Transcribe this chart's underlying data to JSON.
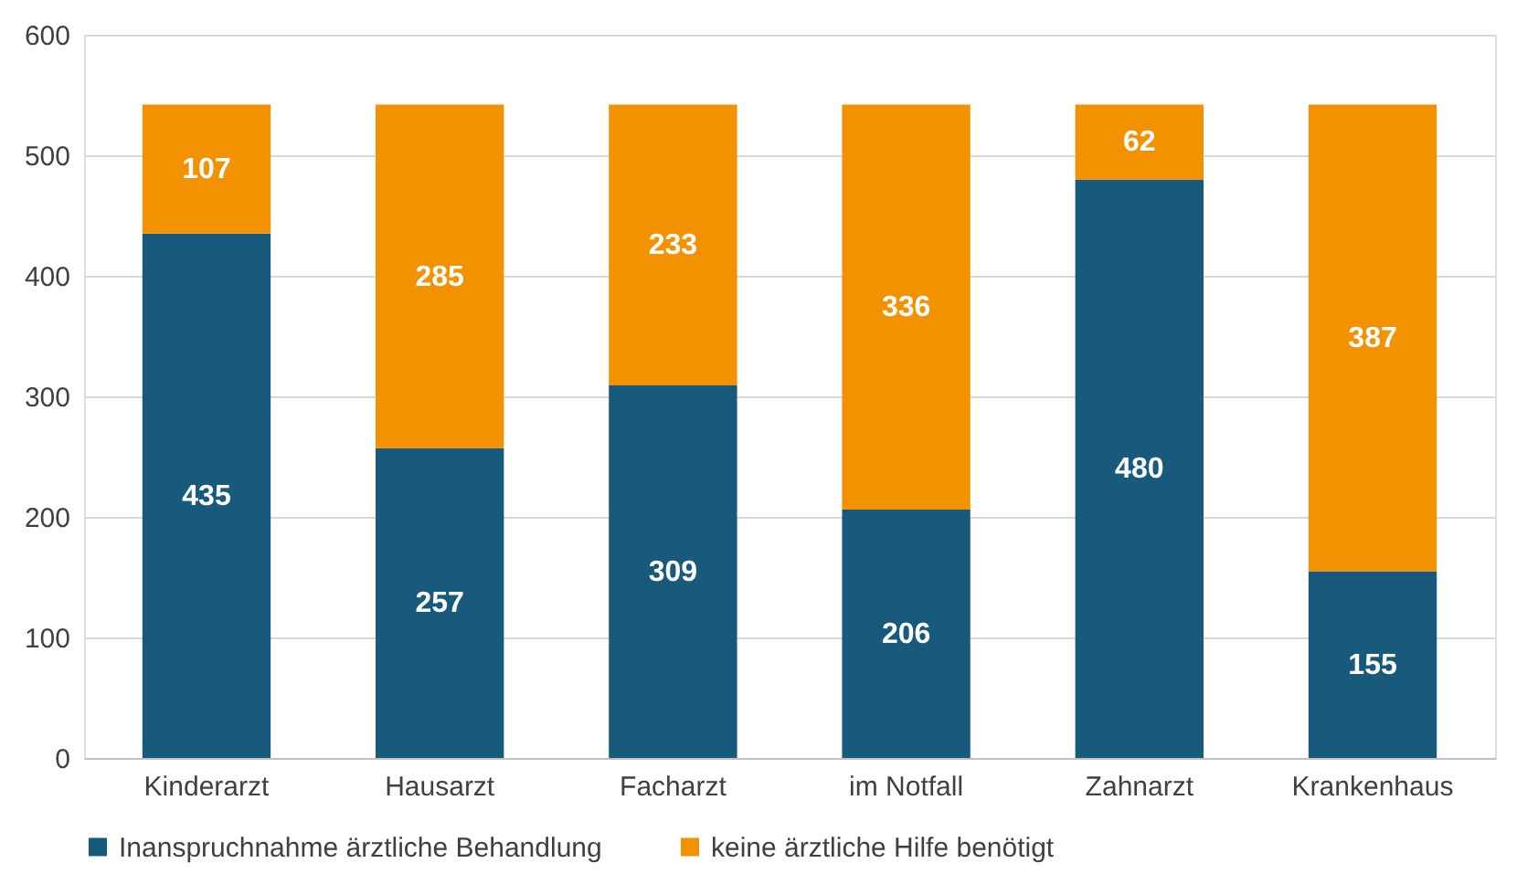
{
  "chart_data": {
    "type": "bar",
    "stacked": true,
    "categories": [
      "Kinderarzt",
      "Hausarzt",
      "Facharzt",
      "im Notfall",
      "Zahnarzt",
      "Krankenhaus"
    ],
    "series": [
      {
        "name": "Inanspruchnahme ärztliche Behandlung",
        "color": "#175a7c",
        "values": [
          435,
          257,
          309,
          206,
          480,
          155
        ]
      },
      {
        "name": "keine ärztliche Hilfe benötigt",
        "color": "#f39200",
        "values": [
          107,
          285,
          233,
          336,
          62,
          387
        ]
      }
    ],
    "ylim": [
      0,
      600
    ],
    "yticks": [
      0,
      100,
      200,
      300,
      400,
      500,
      600
    ],
    "grid": "y",
    "legend": "bottom",
    "data_labels": true
  }
}
